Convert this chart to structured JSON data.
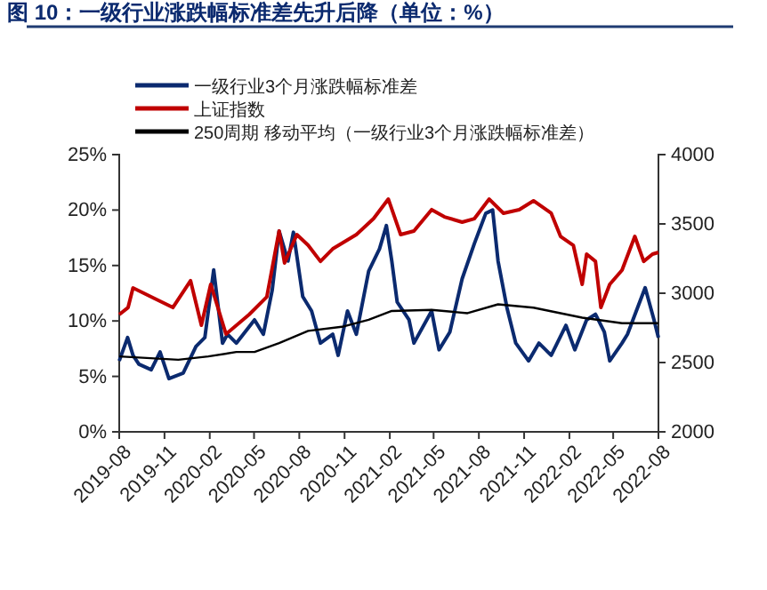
{
  "chart_data": {
    "type": "line",
    "title": "图 10：一级行业涨跌幅标准差先升后降（单位：%）",
    "xlim": [
      "2019-08",
      "2022-08"
    ],
    "xticks": [
      "2019-08",
      "2019-11",
      "2020-02",
      "2020-05",
      "2020-08",
      "2020-11",
      "2021-02",
      "2021-05",
      "2021-08",
      "2021-11",
      "2022-02",
      "2022-05",
      "2022-08"
    ],
    "ylim": [
      0,
      25
    ],
    "yticks": [
      {
        "value": 0,
        "label": "0%"
      },
      {
        "value": 5,
        "label": "5%"
      },
      {
        "value": 10,
        "label": "10%"
      },
      {
        "value": 15,
        "label": "15%"
      },
      {
        "value": 20,
        "label": "20%"
      },
      {
        "value": 25,
        "label": "25%"
      }
    ],
    "y2lim": [
      2000,
      4000
    ],
    "y2ticks": [
      2000,
      2500,
      3000,
      3500,
      4000
    ],
    "legend": "top",
    "grid": false,
    "marker": "none",
    "line_style": "solid",
    "series": [
      {
        "name": "一级行业3个月涨跌幅标准差",
        "color": "#0b2a6f",
        "x": [
          "2019-08-01",
          "2019-08-18",
          "2019-08-29",
          "2019-09-10",
          "2019-10-05",
          "2019-10-23",
          "2019-11-10",
          "2019-12-09",
          "2020-01-04",
          "2020-01-22",
          "2020-02-09",
          "2020-02-27",
          "2020-03-08",
          "2020-03-26",
          "2020-05-02",
          "2020-05-20",
          "2020-06-07",
          "2020-06-21",
          "2020-07-09",
          "2020-07-20",
          "2020-08-08",
          "2020-08-26",
          "2020-09-13",
          "2020-10-08",
          "2020-10-19",
          "2020-11-07",
          "2020-11-25",
          "2020-12-20",
          "2021-01-11",
          "2021-01-25",
          "2021-02-05",
          "2021-02-16",
          "2021-03-12",
          "2021-03-22",
          "2021-04-17",
          "2021-04-27",
          "2021-05-12",
          "2021-06-03",
          "2021-06-28",
          "2021-07-23",
          "2021-08-15",
          "2021-08-29",
          "2021-09-09",
          "2021-09-27",
          "2021-10-15",
          "2021-11-10",
          "2021-12-01",
          "2021-12-26",
          "2022-01-25",
          "2022-02-12",
          "2022-03-08",
          "2022-03-26",
          "2022-04-13",
          "2022-04-24",
          "2022-05-19",
          "2022-05-30",
          "2022-07-05",
          "2022-07-23",
          "2022-08-01"
        ],
        "values": [
          6.4,
          8.5,
          6.9,
          6.1,
          5.6,
          7.2,
          4.8,
          5.3,
          7.7,
          8.5,
          14.6,
          8.0,
          8.8,
          8.0,
          10.1,
          8.8,
          12.8,
          18.1,
          15.4,
          18.0,
          12.2,
          10.9,
          8.0,
          8.8,
          6.9,
          10.9,
          8.8,
          14.5,
          16.5,
          18.6,
          15.4,
          11.7,
          10.1,
          8.0,
          10.1,
          10.9,
          7.4,
          9.0,
          13.8,
          17.0,
          19.7,
          20.0,
          15.4,
          11.2,
          8.0,
          6.4,
          8.0,
          6.9,
          9.6,
          7.4,
          10.1,
          10.6,
          9.0,
          6.4,
          8.0,
          8.8,
          13.0,
          10.1,
          8.5
        ]
      },
      {
        "name": "上证指数",
        "color": "#c00000",
        "axis": "y2",
        "x": [
          "2019-08-01",
          "2019-08-19",
          "2019-08-29",
          "2019-10-12",
          "2019-11-18",
          "2019-12-24",
          "2020-01-15",
          "2020-02-03",
          "2020-03-05",
          "2020-04-21",
          "2020-05-27",
          "2020-06-21",
          "2020-07-02",
          "2020-07-27",
          "2020-08-19",
          "2020-09-13",
          "2020-10-08",
          "2020-11-25",
          "2020-12-30",
          "2021-01-29",
          "2021-02-23",
          "2021-03-22",
          "2021-04-27",
          "2021-05-23",
          "2021-06-28",
          "2021-07-23",
          "2021-08-22",
          "2021-09-20",
          "2021-10-22",
          "2021-11-20",
          "2021-12-26",
          "2022-01-14",
          "2022-02-09",
          "2022-02-27",
          "2022-03-08",
          "2022-03-26",
          "2022-04-06",
          "2022-04-24",
          "2022-05-19",
          "2022-06-14",
          "2022-07-02",
          "2022-07-20",
          "2022-08-01"
        ],
        "values": [
          2846,
          2897,
          3038,
          2962,
          2897,
          3090,
          2769,
          3064,
          2705,
          2846,
          2974,
          3449,
          3218,
          3423,
          3346,
          3230,
          3320,
          3423,
          3538,
          3679,
          3423,
          3449,
          3603,
          3551,
          3513,
          3538,
          3679,
          3577,
          3603,
          3667,
          3577,
          3410,
          3346,
          3064,
          3282,
          3230,
          2897,
          3064,
          3167,
          3410,
          3230,
          3282,
          3295
        ]
      },
      {
        "name": "250周期 移动平均（一级行业3个月涨跌幅标准差）",
        "color": "#000000",
        "x": [
          "2019-08-01",
          "2019-11-29",
          "2020-01-29",
          "2020-03-26",
          "2020-05-02",
          "2020-06-21",
          "2020-08-19",
          "2020-10-30",
          "2020-12-20",
          "2021-02-05",
          "2021-04-27",
          "2021-07-09",
          "2021-09-09",
          "2021-11-20",
          "2022-02-27",
          "2022-05-19",
          "2022-08-01"
        ],
        "values": [
          6.8,
          6.5,
          6.8,
          7.2,
          7.2,
          8.0,
          9.1,
          9.5,
          10.1,
          10.9,
          11.0,
          10.7,
          11.5,
          11.2,
          10.3,
          9.8,
          9.8
        ]
      }
    ]
  }
}
